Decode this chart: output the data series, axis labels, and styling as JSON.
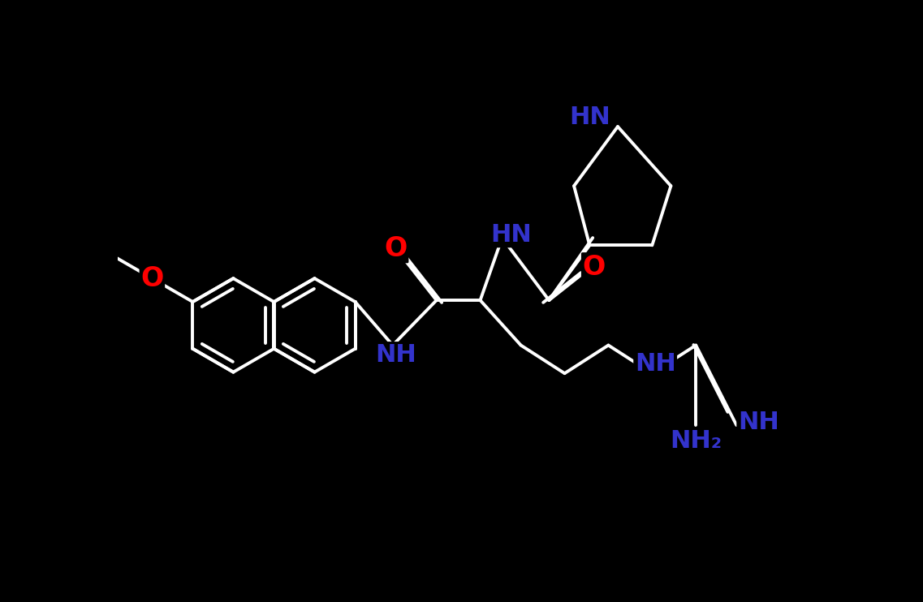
{
  "background_color": "#000000",
  "bond_color": "#ffffff",
  "O_color": "#ff0000",
  "N_color": "#3333cc",
  "bond_width": 2.8,
  "figsize": [
    11.37,
    7.42
  ],
  "dpi": 100,
  "xlim": [
    0,
    1137
  ],
  "ylim": [
    0,
    742
  ]
}
